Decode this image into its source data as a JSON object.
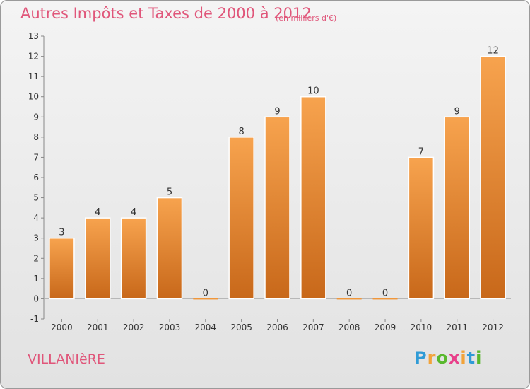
{
  "title": "Autres Impôts et Taxes de 2000 à 2012",
  "subtitle": "(en milliers d'€)",
  "commune": "VILLANIèRE",
  "logo": {
    "letters": [
      "P",
      "r",
      "o",
      "x",
      "i",
      "t",
      "i"
    ],
    "colors": [
      "#2f9bd6",
      "#f2a33a",
      "#59b82d",
      "#e8408a",
      "#f2a33a",
      "#2f9bd6",
      "#59b82d"
    ]
  },
  "chart_data": {
    "type": "bar",
    "categories": [
      "2000",
      "2001",
      "2002",
      "2003",
      "2004",
      "2005",
      "2006",
      "2007",
      "2008",
      "2009",
      "2010",
      "2011",
      "2012"
    ],
    "values": [
      3,
      4,
      4,
      5,
      0,
      8,
      9,
      10,
      0,
      0,
      7,
      9,
      12
    ],
    "data_labels": [
      "3",
      "4",
      "4",
      "5",
      "0",
      "8",
      "9",
      "10",
      "0",
      "0",
      "7",
      "9",
      "12"
    ],
    "yticks": [
      "-1",
      "0",
      "1",
      "2",
      "3",
      "4",
      "5",
      "6",
      "7",
      "8",
      "9",
      "10",
      "11",
      "12",
      "13"
    ],
    "ylim": [
      -1,
      13
    ],
    "grid": false,
    "bar_color": "#f0963a",
    "title": "Autres Impôts et Taxes de 2000 à 2012",
    "xlabel": "",
    "ylabel": ""
  }
}
